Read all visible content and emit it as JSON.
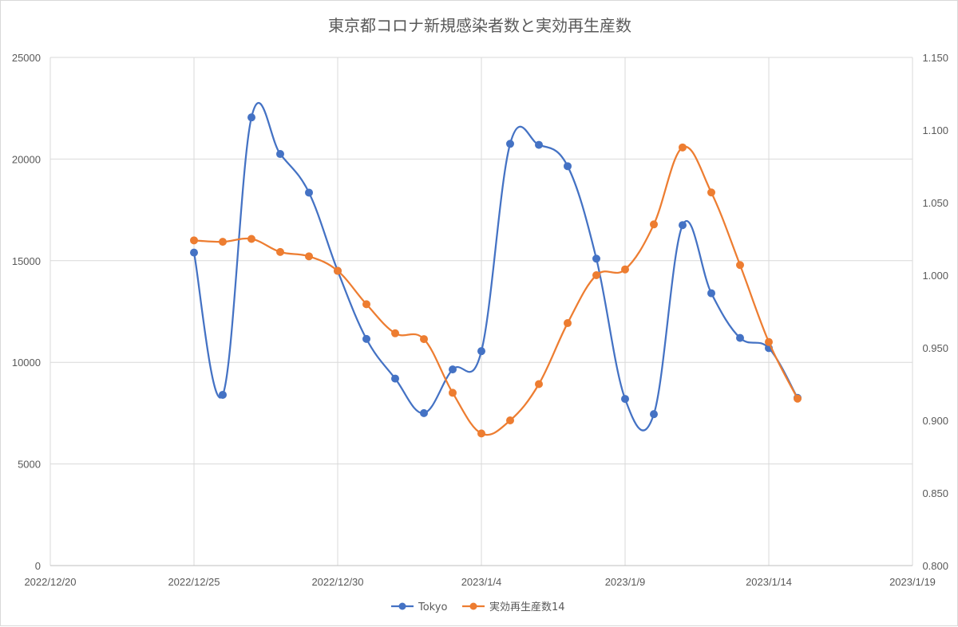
{
  "chart_data": {
    "type": "line",
    "title": "東京都コロナ新規感染者数と実効再生産数",
    "x_axis": {
      "type": "date",
      "min": "2022-12-20",
      "max": "2023-01-19",
      "ticks": [
        "2022-12-20",
        "2022-12-25",
        "2022-12-30",
        "2023-01-04",
        "2023-01-09",
        "2023-01-14",
        "2023-01-19"
      ],
      "tick_labels": [
        "2022/12/20",
        "2022/12/25",
        "2022/12/30",
        "2023/1/4",
        "2023/1/9",
        "2023/1/14",
        "2023/1/19"
      ]
    },
    "y_axis_left": {
      "min": 0,
      "max": 25000,
      "ticks": [
        0,
        5000,
        10000,
        15000,
        20000,
        25000
      ],
      "tick_labels": [
        "0",
        "5000",
        "10000",
        "15000",
        "20000",
        "25000"
      ]
    },
    "y_axis_right": {
      "min": 0.8,
      "max": 1.15,
      "ticks": [
        0.8,
        0.85,
        0.9,
        0.95,
        1.0,
        1.05,
        1.1,
        1.15
      ],
      "tick_labels": [
        "0.800",
        "0.850",
        "0.900",
        "0.950",
        "1.000",
        "1.050",
        "1.100",
        "1.150"
      ]
    },
    "grid": true,
    "legend_position": "bottom",
    "series": [
      {
        "name": "Tokyo",
        "axis": "left",
        "color": "#4472C4",
        "smooth": true,
        "points": [
          {
            "x": "2022-12-25",
            "y": 15400
          },
          {
            "x": "2022-12-26",
            "y": 8400
          },
          {
            "x": "2022-12-27",
            "y": 22050
          },
          {
            "x": "2022-12-28",
            "y": 20250
          },
          {
            "x": "2022-12-29",
            "y": 18350
          },
          {
            "x": "2022-12-30",
            "y": 14500
          },
          {
            "x": "2022-12-31",
            "y": 11150
          },
          {
            "x": "2023-01-01",
            "y": 9200
          },
          {
            "x": "2023-01-02",
            "y": 7500
          },
          {
            "x": "2023-01-03",
            "y": 9650
          },
          {
            "x": "2023-01-04",
            "y": 10550
          },
          {
            "x": "2023-01-05",
            "y": 20750
          },
          {
            "x": "2023-01-06",
            "y": 20700
          },
          {
            "x": "2023-01-07",
            "y": 19650
          },
          {
            "x": "2023-01-08",
            "y": 15100
          },
          {
            "x": "2023-01-09",
            "y": 8200
          },
          {
            "x": "2023-01-10",
            "y": 7450
          },
          {
            "x": "2023-01-11",
            "y": 16750
          },
          {
            "x": "2023-01-12",
            "y": 13400
          },
          {
            "x": "2023-01-13",
            "y": 11200
          },
          {
            "x": "2023-01-14",
            "y": 10700
          },
          {
            "x": "2023-01-15",
            "y": 8250
          }
        ]
      },
      {
        "name": "実効再生産数14",
        "axis": "right",
        "color": "#ED7D31",
        "smooth": true,
        "points": [
          {
            "x": "2022-12-25",
            "y": 1.024
          },
          {
            "x": "2022-12-26",
            "y": 1.023
          },
          {
            "x": "2022-12-27",
            "y": 1.025
          },
          {
            "x": "2022-12-28",
            "y": 1.016
          },
          {
            "x": "2022-12-29",
            "y": 1.013
          },
          {
            "x": "2022-12-30",
            "y": 1.003
          },
          {
            "x": "2022-12-31",
            "y": 0.98
          },
          {
            "x": "2023-01-01",
            "y": 0.96
          },
          {
            "x": "2023-01-02",
            "y": 0.956
          },
          {
            "x": "2023-01-03",
            "y": 0.919
          },
          {
            "x": "2023-01-04",
            "y": 0.891
          },
          {
            "x": "2023-01-05",
            "y": 0.9
          },
          {
            "x": "2023-01-06",
            "y": 0.925
          },
          {
            "x": "2023-01-07",
            "y": 0.967
          },
          {
            "x": "2023-01-08",
            "y": 1.0
          },
          {
            "x": "2023-01-09",
            "y": 1.004
          },
          {
            "x": "2023-01-10",
            "y": 1.035
          },
          {
            "x": "2023-01-11",
            "y": 1.088
          },
          {
            "x": "2023-01-12",
            "y": 1.057
          },
          {
            "x": "2023-01-13",
            "y": 1.007
          },
          {
            "x": "2023-01-14",
            "y": 0.954
          },
          {
            "x": "2023-01-15",
            "y": 0.915
          }
        ]
      }
    ]
  }
}
